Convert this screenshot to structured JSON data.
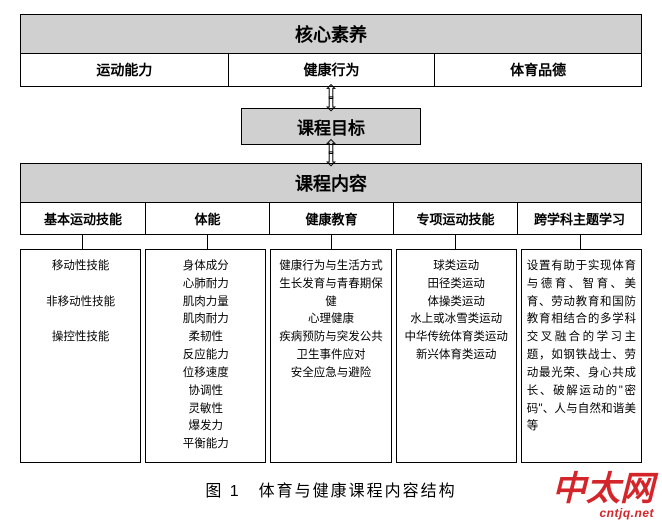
{
  "colors": {
    "header_bg": "#d0d0d0",
    "border": "#000000",
    "page_bg": "#ffffff",
    "watermark": "#d4252a"
  },
  "core": {
    "title": "核心素养",
    "items": [
      "运动能力",
      "健康行为",
      "体育品德"
    ]
  },
  "goal": {
    "title": "课程目标"
  },
  "content": {
    "title": "课程内容",
    "columns": [
      "基本运动技能",
      "体能",
      "健康教育",
      "专项运动技能",
      "跨学科主题学习"
    ]
  },
  "details": {
    "c0": [
      "移动性技能",
      "非移动性技能",
      "操控性技能"
    ],
    "c1": [
      "身体成分",
      "心肺耐力",
      "肌肉力量",
      "肌肉耐力",
      "柔韧性",
      "反应能力",
      "位移速度",
      "协调性",
      "灵敏性",
      "爆发力",
      "平衡能力"
    ],
    "c2": [
      "健康行为与生活方式",
      "生长发育与青春期保健",
      "心理健康",
      "疾病预防与突发公共卫生事件应对",
      "安全应急与避险"
    ],
    "c3": [
      "球类运动",
      "田径类运动",
      "体操类运动",
      "水上或冰雪类运动",
      "中华传统体育类运动",
      "新兴体育类运动"
    ],
    "c4": "设置有助于实现体育与德育、智育、美育、劳动教育和国防教育相结合的多学科交叉融合的学习主题，如钢铁战士、劳动最光荣、身心共成长、破解运动的\"密码\"、人与自然和谐美等"
  },
  "caption": "图 1　体育与健康课程内容结构",
  "arrows": {
    "up": "⇧",
    "down": "⇩"
  },
  "watermark": {
    "cn": "中太网",
    "url": "cntjq.net"
  }
}
